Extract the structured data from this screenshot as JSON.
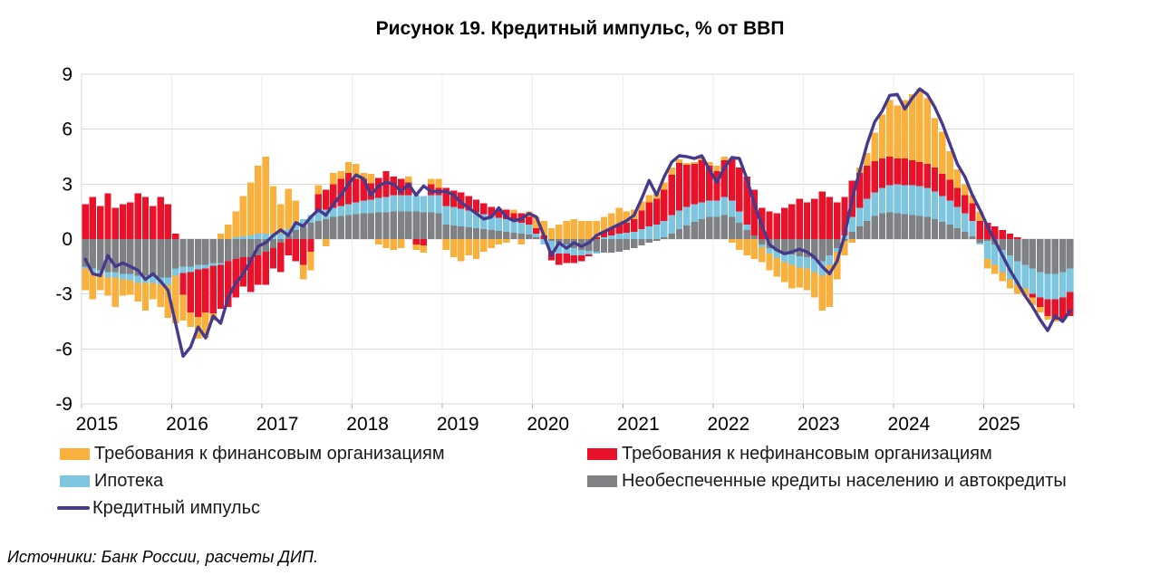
{
  "title": "Рисунок 19. Кредитный импульс, % от ВВП",
  "source": "Источники: Банк России, расчеты ДИП.",
  "colors": {
    "fin": "#F9B03C",
    "nonfin": "#E8132B",
    "mortgage": "#7EC5DF",
    "unsecured": "#7F8184",
    "impulse": "#453A8C",
    "grid": "#D9D9D9",
    "grid_vertical": "#ECECEC",
    "tick": "#B5B5B5",
    "text": "#000000"
  },
  "legend": {
    "items": [
      {
        "label": "Требования к финансовым организациям",
        "color_key": "fin",
        "type": "bar"
      },
      {
        "label": "Требования к нефинансовым организациям",
        "color_key": "nonfin",
        "type": "bar"
      },
      {
        "label": "Ипотека",
        "color_key": "mortgage",
        "type": "bar"
      },
      {
        "label": "Необеспеченные кредиты населению и автокредиты",
        "color_key": "unsecured",
        "type": "bar"
      },
      {
        "label": "Кредитный импульс",
        "color_key": "impulse",
        "type": "line"
      }
    ]
  },
  "chart_data": {
    "type": "bar",
    "subtype": "stacked-bars-with-line",
    "title": "Рисунок 19. Кредитный импульс, % от ВВП",
    "xlabel": "",
    "ylabel": "% от ВВП",
    "ylim": [
      -9,
      9
    ],
    "y_ticks": [
      9,
      6,
      3,
      0,
      -3,
      -6,
      -9
    ],
    "x_labels": [
      "2015",
      "2016",
      "2017",
      "2018",
      "2019",
      "2020",
      "2021",
      "2022",
      "2023",
      "2024",
      "2025"
    ],
    "months_per_year": 12,
    "period": "2015-01 .. 2025-12, monthly",
    "grid": true,
    "legend_position": "bottom",
    "stack_order": [
      "unsecured",
      "mortgage",
      "nonfin",
      "fin"
    ],
    "series": [
      {
        "key": "fin",
        "type": "bar",
        "name": "Требования к финансовым организациям",
        "values": [
          -1.2,
          -1.5,
          -0.9,
          -1.0,
          -1.6,
          -0.9,
          -0.8,
          -1.0,
          -1.5,
          -0.9,
          -1.2,
          -1.8,
          -2.6,
          -1.4,
          -0.8,
          -1.2,
          -1.4,
          -0.4,
          0.3,
          0.8,
          1.4,
          2.2,
          2.9,
          3.7,
          4.2,
          2.6,
          1.6,
          2.2,
          1.2,
          -0.8,
          -1.0,
          0.5,
          -0.4,
          0.6,
          0.4,
          0.6,
          0.8,
          0.3,
          0.5,
          -0.3,
          -0.5,
          -0.6,
          -0.5,
          0.3,
          -0.3,
          -0.4,
          0.3,
          0.5,
          -0.6,
          -1.0,
          -1.2,
          -0.9,
          -1.1,
          -0.7,
          -0.5,
          -0.3,
          -0.2,
          0.2,
          -0.3,
          0.3,
          0.6,
          0.8,
          0.6,
          0.8,
          1.0,
          1.1,
          1.0,
          1.0,
          0.9,
          0.8,
          0.8,
          0.9,
          0.6,
          0.5,
          0.5,
          0.4,
          0.3,
          0.4,
          0.4,
          0.2,
          0.1,
          0.1,
          0.2,
          0.2,
          0.3,
          0.2,
          -0.2,
          -0.6,
          -0.9,
          -1.1,
          -0.8,
          -0.9,
          -1.0,
          -1.1,
          -1.3,
          -1.1,
          -1.2,
          -1.4,
          -1.9,
          -2.3,
          -1.5,
          -0.8,
          -0.2,
          0.3,
          0.7,
          1.55,
          2.4,
          3.1,
          2.9,
          3.2,
          3.6,
          4.0,
          3.6,
          2.7,
          2.3,
          1.55,
          1.0,
          0.6,
          0.45,
          0.5,
          -0.5,
          -0.5,
          -0.5,
          -0.5,
          -0.5,
          -0.4,
          -0.4,
          -0.3,
          -0.2,
          -0.1,
          0.0,
          0.0
        ]
      },
      {
        "key": "nonfin",
        "type": "bar",
        "name": "Требования к нефинансовым организациям",
        "values": [
          1.9,
          2.3,
          1.8,
          2.5,
          1.7,
          1.9,
          2.0,
          2.5,
          2.3,
          1.8,
          2.3,
          1.9,
          0.3,
          -1.2,
          -2.2,
          -2.6,
          -2.4,
          -2.6,
          -2.4,
          -2.5,
          -2.1,
          -1.6,
          -1.9,
          -1.6,
          -1.8,
          -1.1,
          -1.6,
          -0.9,
          -1.2,
          -1.4,
          -0.7,
          1.0,
          1.1,
          1.3,
          1.5,
          1.7,
          1.3,
          1.2,
          0.9,
          1.1,
          1.4,
          1.0,
          0.9,
          0.7,
          -0.3,
          -0.35,
          0.6,
          0.4,
          1.0,
          0.9,
          0.9,
          0.8,
          0.7,
          0.6,
          0.5,
          0.5,
          0.5,
          0.4,
          0.5,
          0.4,
          0.3,
          0.2,
          -0.5,
          -0.6,
          -0.5,
          -0.4,
          -0.3,
          -0.1,
          0.1,
          0.3,
          0.4,
          0.5,
          0.55,
          0.7,
          1.0,
          1.3,
          1.4,
          1.7,
          2.2,
          2.6,
          2.3,
          2.2,
          2.3,
          1.9,
          1.6,
          2.0,
          2.3,
          2.4,
          2.6,
          2.5,
          1.7,
          1.5,
          1.4,
          1.7,
          1.9,
          2.2,
          2.0,
          2.2,
          2.6,
          2.3,
          2.0,
          2.1,
          2.0,
          1.9,
          1.8,
          1.7,
          1.6,
          1.55,
          1.4,
          1.45,
          1.35,
          1.3,
          1.3,
          1.3,
          1.2,
          1.15,
          1.05,
          1.0,
          0.95,
          1.0,
          0.9,
          0.7,
          0.5,
          0.3,
          0.1,
          0.0,
          -0.2,
          -0.5,
          -0.9,
          -1.1,
          -1.2,
          -1.3
        ]
      },
      {
        "key": "mortgage",
        "type": "bar",
        "name": "Ипотека",
        "values": [
          -0.1,
          -0.2,
          -0.2,
          -0.3,
          -0.3,
          -0.3,
          -0.35,
          -0.4,
          -0.4,
          -0.4,
          -0.4,
          -0.4,
          -0.4,
          -0.35,
          -0.3,
          -0.25,
          -0.2,
          -0.15,
          -0.1,
          0.0,
          0.1,
          0.15,
          0.2,
          0.3,
          0.3,
          0.3,
          0.3,
          0.35,
          0.4,
          0.4,
          0.4,
          0.45,
          0.5,
          0.5,
          0.55,
          0.6,
          0.65,
          0.7,
          0.75,
          0.8,
          0.85,
          0.9,
          0.9,
          0.9,
          0.9,
          0.9,
          0.95,
          1.0,
          1.0,
          1.0,
          0.95,
          0.9,
          0.85,
          0.8,
          0.75,
          0.7,
          0.7,
          0.65,
          0.6,
          0.55,
          0.2,
          -0.3,
          -0.55,
          -0.6,
          -0.5,
          -0.4,
          -0.3,
          -0.2,
          -0.1,
          0.1,
          0.2,
          0.3,
          0.35,
          0.4,
          0.55,
          0.7,
          0.8,
          0.9,
          1.0,
          1.0,
          1.0,
          0.95,
          0.9,
          0.9,
          0.9,
          1.0,
          0.9,
          0.6,
          0.3,
          0.0,
          -0.15,
          -0.3,
          -0.4,
          -0.5,
          -0.55,
          -0.6,
          -0.6,
          -0.7,
          -0.8,
          -0.5,
          -0.2,
          0.2,
          0.8,
          1.0,
          1.2,
          1.3,
          1.4,
          1.5,
          1.6,
          1.6,
          1.65,
          1.65,
          1.6,
          1.5,
          1.4,
          1.3,
          1.15,
          1.0,
          0.85,
          -0.1,
          -1.0,
          -1.1,
          -1.2,
          -1.3,
          -1.3,
          -1.3,
          -1.4,
          -1.4,
          -1.4,
          -1.4,
          -1.4,
          -1.3
        ]
      },
      {
        "key": "unsecured",
        "type": "bar",
        "name": "Необеспеченные кредиты населению и автокредиты",
        "values": [
          -1.5,
          -1.6,
          -1.7,
          -1.8,
          -1.8,
          -1.9,
          -1.9,
          -2.0,
          -2.0,
          -2.0,
          -2.1,
          -2.1,
          -1.6,
          -1.5,
          -1.5,
          -1.4,
          -1.4,
          -1.3,
          -1.3,
          -1.2,
          -1.1,
          -1.0,
          -1.0,
          -0.9,
          -0.7,
          -0.5,
          -0.2,
          0.2,
          0.5,
          0.7,
          0.9,
          1.0,
          1.1,
          1.2,
          1.25,
          1.3,
          1.35,
          1.4,
          1.4,
          1.45,
          1.45,
          1.5,
          1.5,
          1.5,
          1.5,
          1.45,
          1.45,
          1.4,
          0.8,
          0.75,
          0.7,
          0.65,
          0.6,
          0.55,
          0.5,
          0.45,
          0.4,
          0.35,
          0.3,
          0.25,
          0.1,
          0.0,
          -0.1,
          -0.2,
          -0.3,
          -0.5,
          -0.6,
          -0.65,
          -0.7,
          -0.75,
          -0.75,
          -0.7,
          -0.6,
          -0.5,
          -0.35,
          -0.2,
          -0.1,
          0.1,
          0.3,
          0.55,
          0.75,
          0.95,
          1.1,
          1.2,
          1.2,
          1.3,
          1.2,
          0.9,
          0.5,
          0.2,
          -0.3,
          -0.5,
          -0.65,
          -0.75,
          -0.85,
          -0.95,
          -1.0,
          -1.1,
          -1.2,
          -0.9,
          -0.5,
          -0.1,
          0.4,
          0.7,
          1.0,
          1.25,
          1.4,
          1.45,
          1.4,
          1.35,
          1.3,
          1.25,
          1.2,
          1.1,
          0.95,
          0.8,
          0.6,
          0.4,
          0.15,
          -0.2,
          -0.1,
          -0.3,
          -0.6,
          -0.9,
          -1.2,
          -1.4,
          -1.6,
          -1.8,
          -1.9,
          -1.9,
          -1.8,
          -1.6
        ]
      },
      {
        "key": "impulse",
        "type": "line",
        "name": "Кредитный импульс",
        "values": [
          -1.1,
          -1.9,
          -2.0,
          -0.9,
          -1.5,
          -1.3,
          -1.5,
          -1.7,
          -2.2,
          -1.9,
          -2.3,
          -2.8,
          -4.6,
          -6.4,
          -5.9,
          -4.8,
          -5.4,
          -4.2,
          -4.6,
          -3.2,
          -2.4,
          -1.9,
          -1.2,
          -0.4,
          -0.2,
          0.2,
          0.5,
          0.2,
          0.9,
          0.7,
          1.2,
          1.6,
          1.3,
          1.9,
          2.4,
          3.0,
          3.5,
          3.3,
          2.4,
          2.9,
          3.1,
          3.0,
          2.6,
          3.0,
          2.4,
          2.9,
          2.6,
          2.6,
          2.6,
          2.4,
          2.0,
          1.7,
          1.4,
          1.1,
          1.2,
          1.7,
          1.2,
          1.0,
          1.1,
          1.4,
          1.2,
          0.2,
          -0.9,
          -0.2,
          -0.5,
          -0.2,
          -0.4,
          -0.2,
          0.2,
          0.4,
          0.6,
          0.8,
          1.0,
          1.3,
          2.2,
          3.2,
          2.4,
          3.4,
          4.2,
          4.55,
          4.5,
          4.4,
          4.55,
          3.8,
          3.1,
          3.9,
          4.45,
          4.4,
          3.3,
          1.9,
          0.75,
          -0.3,
          -0.6,
          -0.8,
          -0.7,
          -0.55,
          -0.7,
          -1.0,
          -1.5,
          -1.9,
          -1.2,
          0.2,
          2.2,
          3.7,
          5.2,
          6.4,
          7.0,
          7.85,
          7.9,
          7.1,
          7.7,
          8.2,
          7.9,
          7.2,
          6.3,
          5.2,
          4.1,
          3.4,
          2.4,
          1.6,
          0.7,
          -0.1,
          -0.9,
          -1.7,
          -2.4,
          -3.1,
          -3.7,
          -4.4,
          -5.0,
          -4.2,
          -4.5,
          -3.9
        ]
      }
    ]
  }
}
